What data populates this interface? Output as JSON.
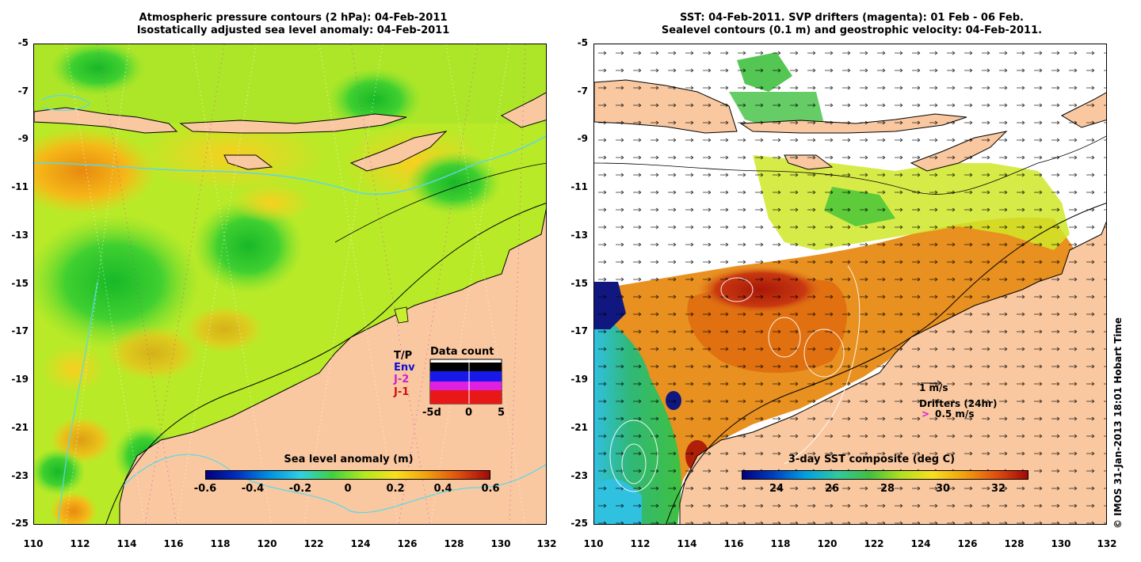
{
  "left_panel": {
    "title_line1": "Atmospheric pressure contours (2 hPa): 04-Feb-2011",
    "title_line2": "Isostatically adjusted sea level anomaly: 04-Feb-2011",
    "colorbar_title": "Sea level anomaly (m)",
    "colorbar_ticks": [
      "-0.6",
      "-0.4",
      "-0.2",
      "0",
      "0.2",
      "0.4",
      "0.6"
    ],
    "inset": {
      "title": "Data count",
      "labels": [
        "T/P",
        "Env",
        "J-2",
        "J-1"
      ],
      "label_colors": [
        "#000000",
        "#1010d0",
        "#d020d0",
        "#d01010"
      ],
      "x_ticks": [
        "-5d",
        "0",
        "5"
      ]
    }
  },
  "right_panel": {
    "title_line1": "SST: 04-Feb-2011. SVP drifters (magenta): 01 Feb - 06 Feb.",
    "title_line2": "Sealevel contours (0.1 m) and geostrophic velocity: 04-Feb-2011.",
    "colorbar_title": "3-day SST composite (deg C)",
    "colorbar_ticks": [
      "24",
      "26",
      "28",
      "30",
      "32"
    ],
    "velocity_scale_label": "1 m/s",
    "drifters_label": "Drifters (24hr)",
    "drifter_scale_label": "0.5 m/s",
    "drifter_marker": ">"
  },
  "y_ticks": [
    "-5",
    "-7",
    "-9",
    "-11",
    "-13",
    "-15",
    "-17",
    "-19",
    "-21",
    "-23",
    "-25"
  ],
  "x_ticks": [
    "110",
    "112",
    "114",
    "116",
    "118",
    "120",
    "122",
    "124",
    "126",
    "128",
    "130",
    "132"
  ],
  "credit": "© IMOS 31-Jan-2013 18:01 Hobart Time",
  "colors": {
    "land": "#f9c8a0",
    "coast_contour": "#5ad8e8",
    "sla_high": "#e87a10",
    "sla_mid": "#c8ee20",
    "sla_low": "#28c030",
    "sst_hot": "#b02008",
    "sst_warm": "#e07818",
    "sst_cool": "#30c0e0"
  }
}
